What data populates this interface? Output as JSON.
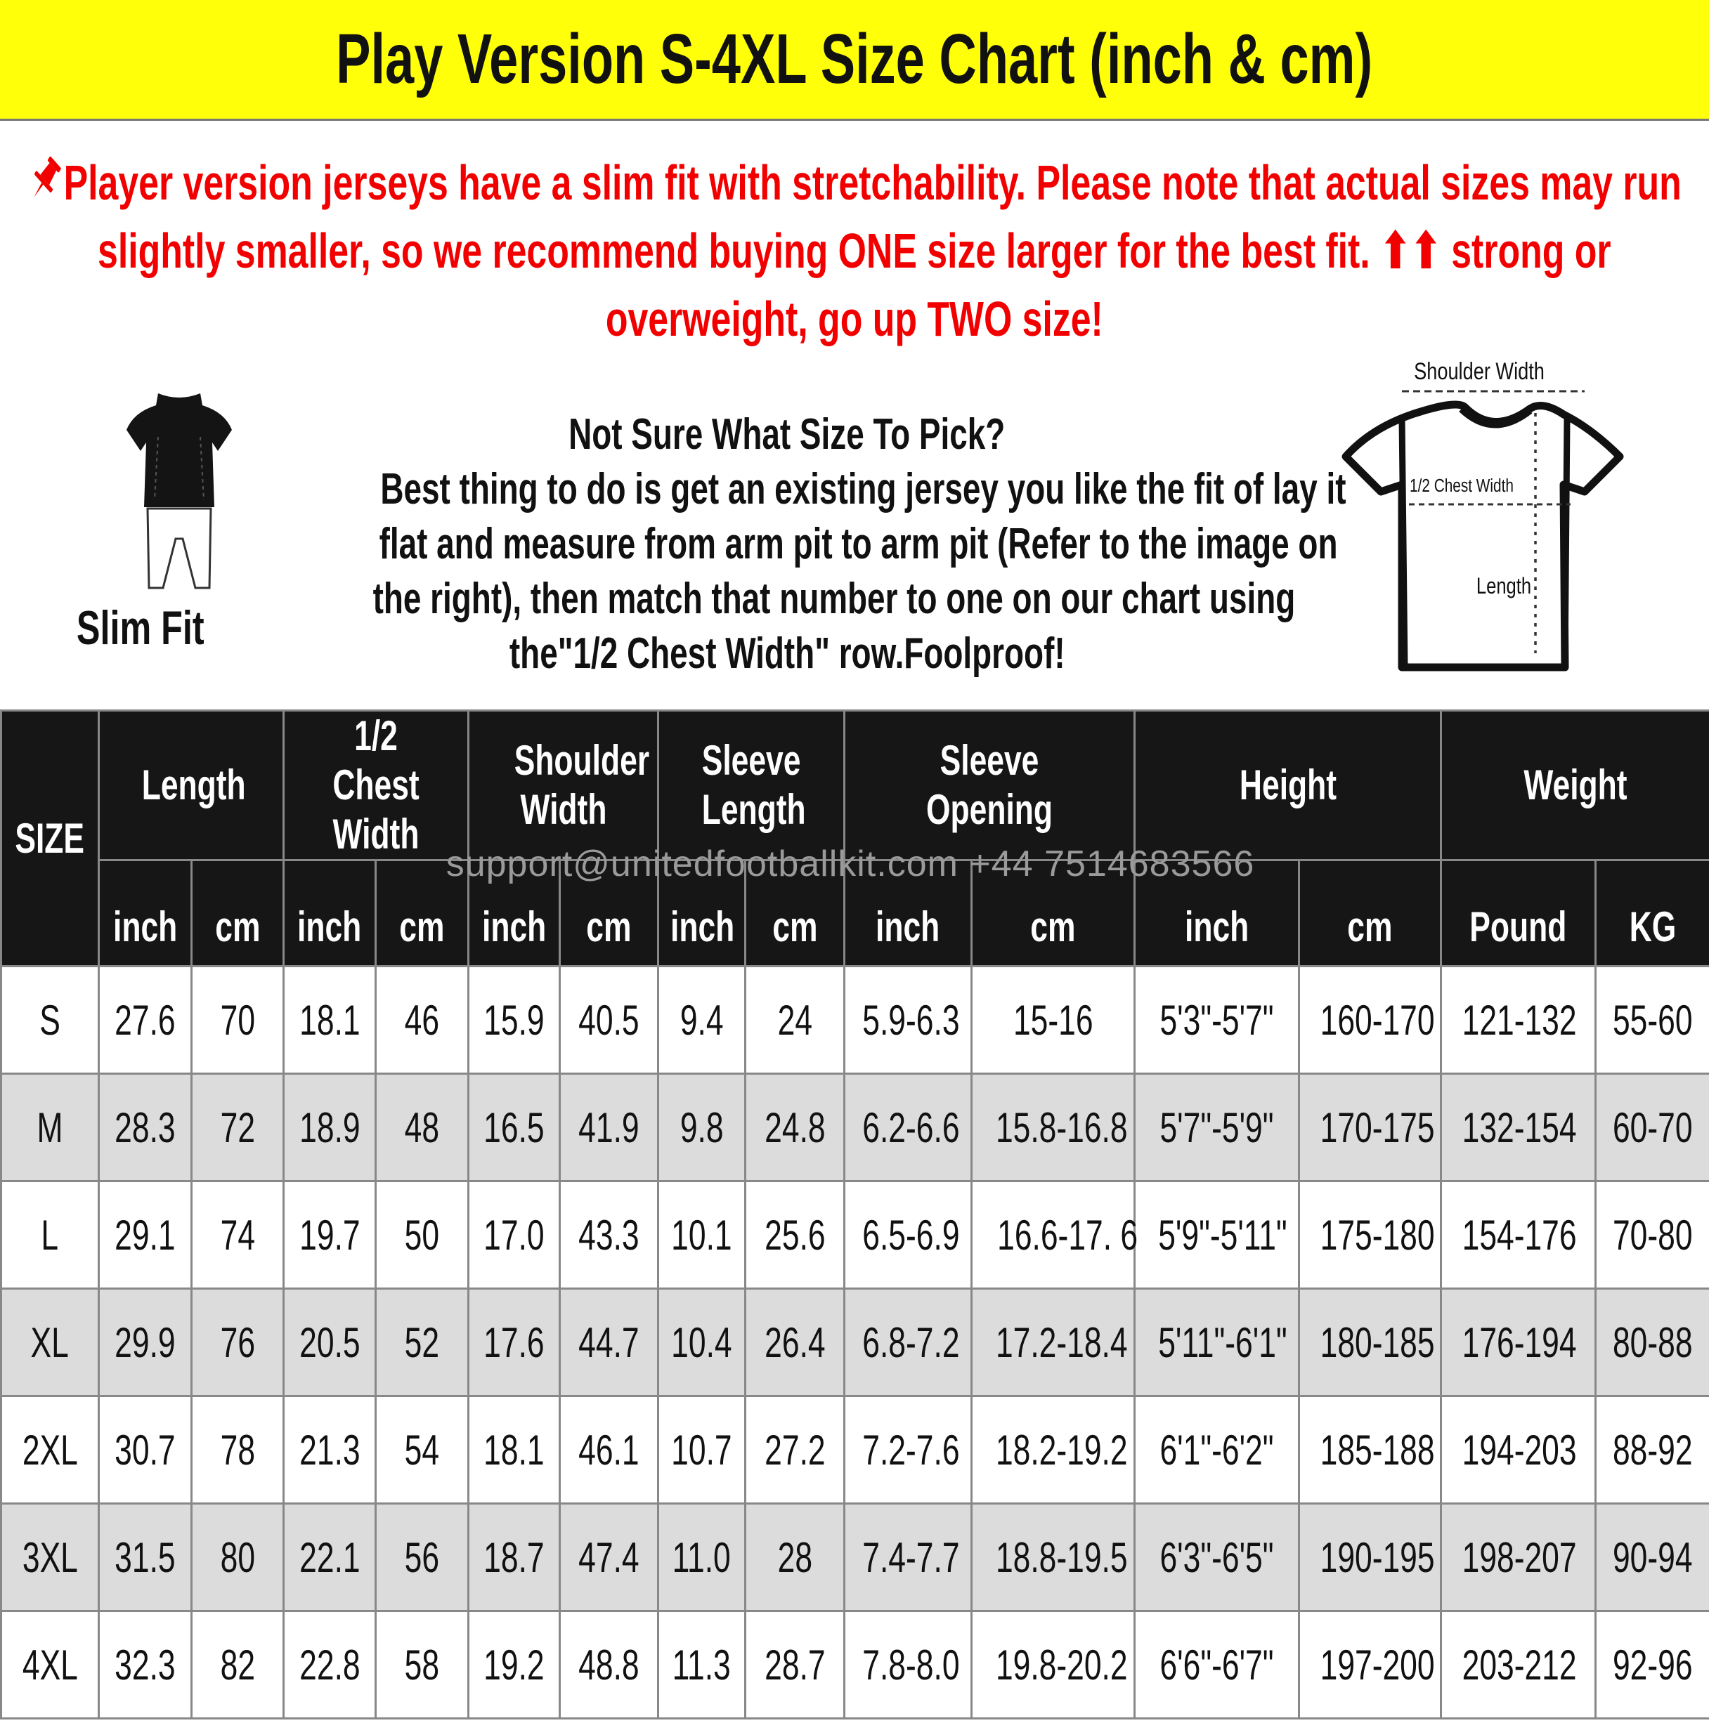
{
  "title": "Play Version S-4XL Size Chart (inch & cm)",
  "notice": {
    "icon": "pushpin-icon",
    "text": "Player version jerseys have a slim fit with stretchability. Please note that actual sizes may run slightly smaller, so we recommend buying ONE size larger for the best fit. ⬆⬆ strong or overweight, go up TWO size!",
    "color": "#f20000"
  },
  "fit": {
    "label": "Slim Fit"
  },
  "help": {
    "lines": [
      "Not Sure What Size To Pick?",
      "Best thing to do is get an existing jersey you like the fit of lay it",
      "flat and measure from arm pit to arm pit (Refer to the image on",
      "the right), then match that number to one on our chart using",
      "the\"1/2 Chest Width\" row.Foolproof!"
    ]
  },
  "diagram": {
    "shoulder_label": "Shoulder Width",
    "chest_label": "1/2 Chest Width",
    "length_label": "Length"
  },
  "watermark": "support@unitedfootballkit.com  +44 7514683566",
  "table": {
    "size_header": "SIZE",
    "groups": [
      {
        "label": "Length",
        "subs": [
          "inch",
          "cm"
        ]
      },
      {
        "label": "1/2 Chest Width",
        "subs": [
          "inch",
          "cm"
        ]
      },
      {
        "label": "Shoulder Width",
        "subs": [
          "inch",
          "cm"
        ]
      },
      {
        "label": "Sleeve Length",
        "subs": [
          "inch",
          "cm"
        ]
      },
      {
        "label": "Sleeve Opening",
        "subs": [
          "inch",
          "cm"
        ]
      },
      {
        "label": "Height",
        "subs": [
          "inch",
          "cm"
        ]
      },
      {
        "label": "Weight",
        "subs": [
          "Pound",
          "KG"
        ]
      }
    ],
    "rows": [
      [
        "S",
        "27.6",
        "70",
        "18.1",
        "46",
        "15.9",
        "40.5",
        "9.4",
        "24",
        "5.9-6.3",
        "15-16",
        "5'3\"-5'7\"",
        "160-170",
        "121-132",
        "55-60"
      ],
      [
        "M",
        "28.3",
        "72",
        "18.9",
        "48",
        "16.5",
        "41.9",
        "9.8",
        "24.8",
        "6.2-6.6",
        "15.8-16.8",
        "5'7\"-5'9\"",
        "170-175",
        "132-154",
        "60-70"
      ],
      [
        "L",
        "29.1",
        "74",
        "19.7",
        "50",
        "17.0",
        "43.3",
        "10.1",
        "25.6",
        "6.5-6.9",
        "16.6-17. 6",
        "5'9\"-5'11\"",
        "175-180",
        "154-176",
        "70-80"
      ],
      [
        "XL",
        "29.9",
        "76",
        "20.5",
        "52",
        "17.6",
        "44.7",
        "10.4",
        "26.4",
        "6.8-7.2",
        "17.2-18.4",
        "5'11\"-6'1\"",
        "180-185",
        "176-194",
        "80-88"
      ],
      [
        "2XL",
        "30.7",
        "78",
        "21.3",
        "54",
        "18.1",
        "46.1",
        "10.7",
        "27.2",
        "7.2-7.6",
        "18.2-19.2",
        "6'1\"-6'2\"",
        "185-188",
        "194-203",
        "88-92"
      ],
      [
        "3XL",
        "31.5",
        "80",
        "22.1",
        "56",
        "18.7",
        "47.4",
        "11.0",
        "28",
        "7.4-7.7",
        "18.8-19.5",
        "6'3\"-6'5\"",
        "190-195",
        "198-207",
        "90-94"
      ],
      [
        "4XL",
        "32.3",
        "82",
        "22.8",
        "58",
        "19.2",
        "48.8",
        "11.3",
        "28.7",
        "7.8-8.0",
        "19.8-20.2",
        "6'6\"-6'7\"",
        "197-200",
        "203-212",
        "92-96"
      ]
    ]
  },
  "colors": {
    "title_bg": "#ffff0a",
    "header_bg": "#161616",
    "alt_row": "#dcdcdc",
    "grid": "#888888"
  }
}
